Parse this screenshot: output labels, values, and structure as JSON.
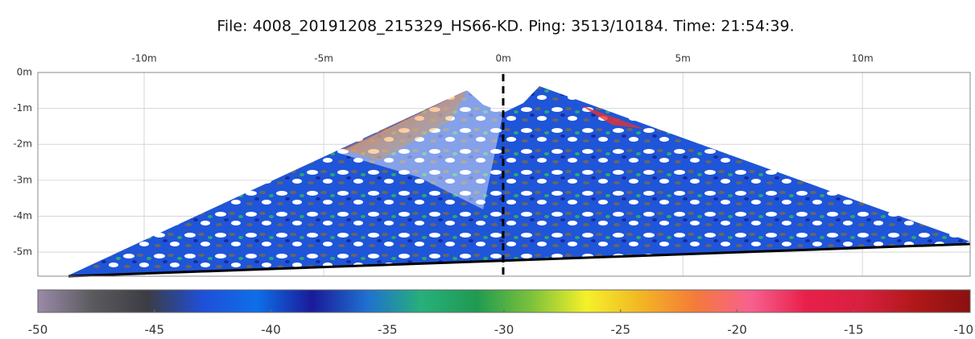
{
  "chart_data": {
    "type": "sonar-image",
    "title": "File: 4008_20191208_215329_HS66-KD. Ping: 3513/10184. Time: 21:54:39.",
    "xlim": [
      -12.96,
      13.0
    ],
    "xticks": [
      {
        "value": -10,
        "label": "-10m"
      },
      {
        "value": -5,
        "label": "-5m"
      },
      {
        "value": 0,
        "label": "0m"
      },
      {
        "value": 5,
        "label": "5m"
      },
      {
        "value": 10,
        "label": "10m"
      }
    ],
    "ylim": [
      -5.67,
      0
    ],
    "yticks": [
      {
        "value": 0,
        "label": "0m"
      },
      {
        "value": -1,
        "label": "-1m"
      },
      {
        "value": -2,
        "label": "-2m"
      },
      {
        "value": -3,
        "label": "-3m"
      },
      {
        "value": -4,
        "label": "-4m"
      },
      {
        "value": -5,
        "label": "-5m"
      }
    ],
    "grid": true,
    "colorbar": {
      "clim": [
        -50,
        -10
      ],
      "ticks": [
        -50,
        -45,
        -40,
        -35,
        -30,
        -25,
        -20,
        -15,
        -10
      ],
      "colormap": [
        "#9a8aa8",
        "#5a5a5e",
        "#3c3c44",
        "#1f4fd8",
        "#0d6fe8",
        "#1a1a9a",
        "#1f70d0",
        "#27b07a",
        "#1f9a52",
        "#7cc23a",
        "#f4f12a",
        "#f2b624",
        "#f47a3a",
        "#f86090",
        "#e8204a",
        "#d82040",
        "#b01818",
        "#8a1010"
      ]
    }
  }
}
